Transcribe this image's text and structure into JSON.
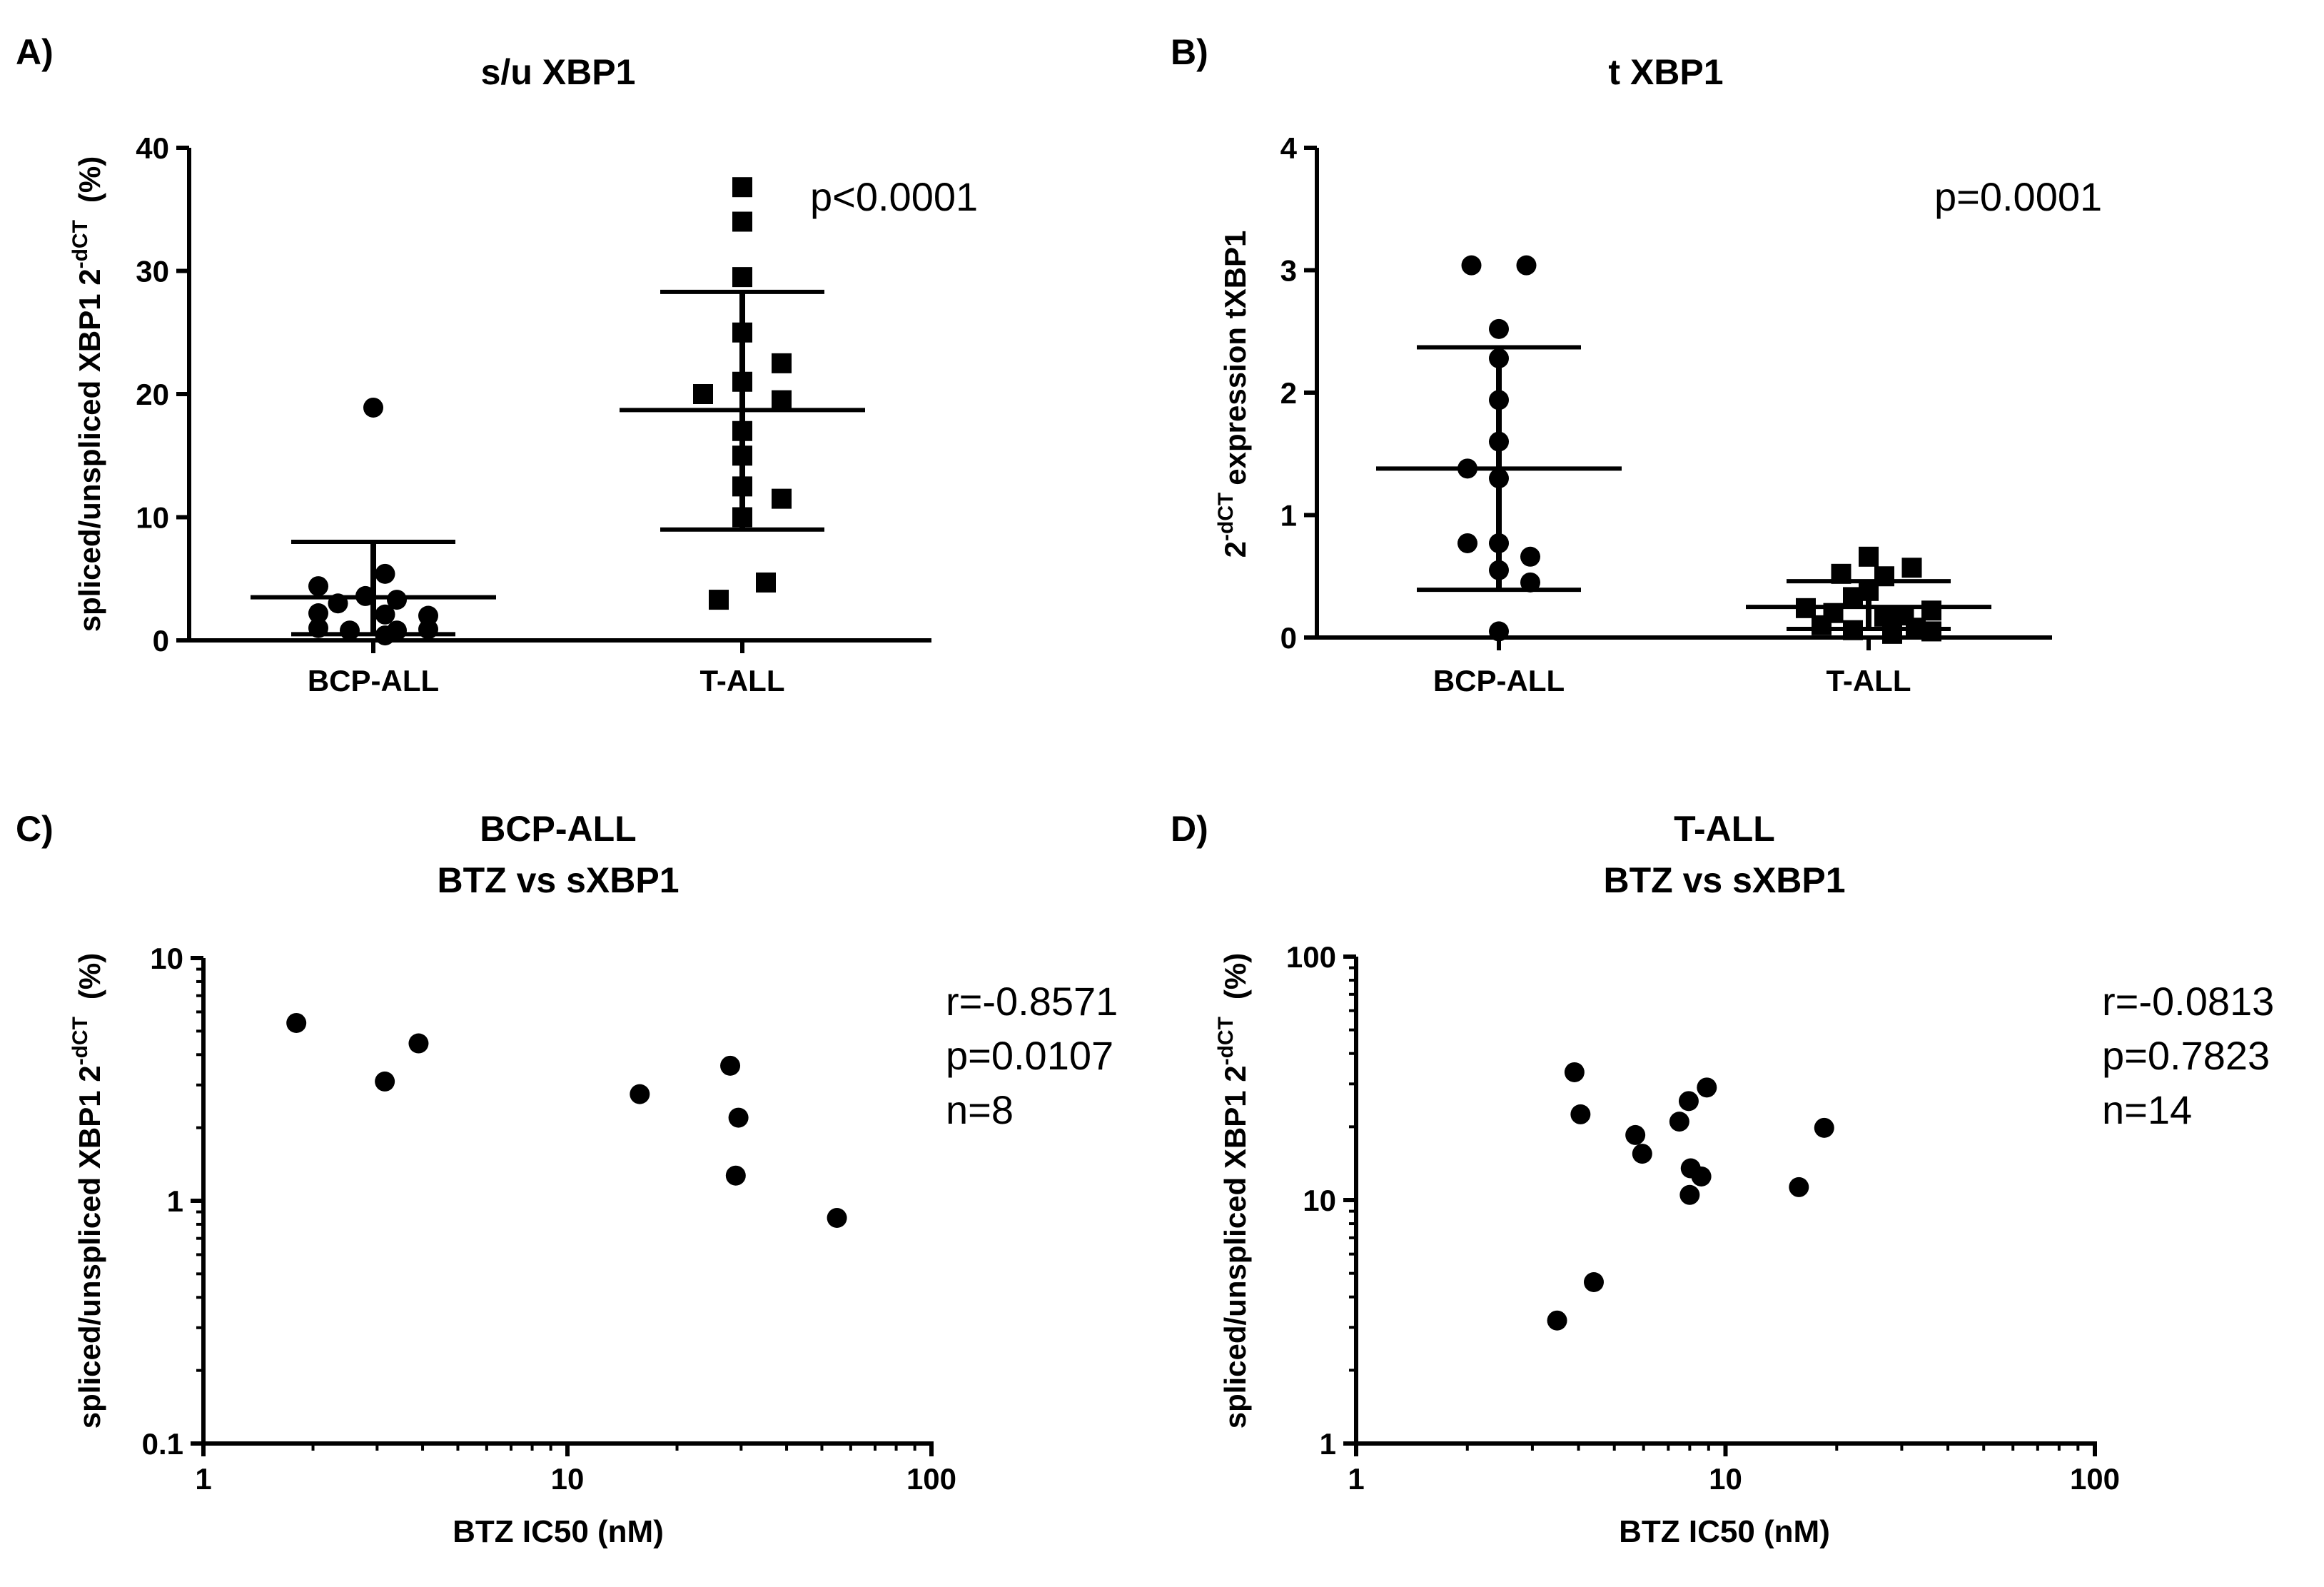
{
  "chart_data": [
    {
      "panel_label": "A)",
      "type": "scatter",
      "title": "s/u XBP1",
      "ylabel_main": "spliced/unspliced XBP1 2",
      "ylabel_sup": "-dCT",
      "ylabel_tail": "(%)",
      "ylim": [
        0,
        40
      ],
      "yticks": [
        "0",
        "10",
        "20",
        "30",
        "40"
      ],
      "categories": [
        "BCP-ALL",
        "T-ALL"
      ],
      "annotation": [
        "p<0.0001"
      ],
      "series": [
        {
          "name": "BCP-ALL",
          "marker": "circle",
          "mean": 3.5,
          "sd_low": 0.5,
          "sd_high": 8.0,
          "values": [
            18.9,
            5.4,
            4.4,
            3.6,
            3.3,
            3.0,
            2.2,
            2.1,
            2.0,
            1.0,
            0.9,
            0.8,
            0.8,
            0.4
          ],
          "offsets": [
            0,
            0.3,
            -1.4,
            -0.2,
            0.6,
            -0.9,
            -1.4,
            0.3,
            1.4,
            -1.4,
            1.4,
            -0.6,
            0.6,
            0.3
          ]
        },
        {
          "name": "T-ALL",
          "marker": "square",
          "mean": 18.7,
          "sd_low": 9.0,
          "sd_high": 28.3,
          "values": [
            36.8,
            34.0,
            29.5,
            25.0,
            22.5,
            21.0,
            20.0,
            19.5,
            17.0,
            15.0,
            12.5,
            11.5,
            10.0,
            4.7,
            3.3
          ],
          "offsets": [
            0,
            0,
            0,
            0,
            1.0,
            0,
            -1.0,
            1.0,
            0,
            0,
            0,
            1.0,
            0,
            0.6,
            -0.6
          ]
        }
      ]
    },
    {
      "panel_label": "B)",
      "type": "scatter",
      "title": "t XBP1",
      "ylabel_main": "expression tXBP1",
      "ylabel_base": "2",
      "ylabel_sup": "-dCT",
      "ylim": [
        0,
        4
      ],
      "yticks": [
        "0",
        "1",
        "2",
        "3",
        "4"
      ],
      "categories": [
        "BCP-ALL",
        "T-ALL"
      ],
      "annotation": [
        "p=0.0001"
      ],
      "series": [
        {
          "name": "BCP-ALL",
          "marker": "circle",
          "mean": 1.38,
          "sd_low": 0.39,
          "sd_high": 2.37,
          "values": [
            3.04,
            3.04,
            2.52,
            2.28,
            1.94,
            1.6,
            1.38,
            1.3,
            0.77,
            0.77,
            0.66,
            0.55,
            0.45,
            0.05
          ],
          "offsets": [
            -0.7,
            0.7,
            0,
            0,
            0,
            0,
            -0.8,
            0,
            -0.8,
            0,
            0.8,
            0,
            0.8,
            0
          ]
        },
        {
          "name": "T-ALL",
          "marker": "square",
          "mean": 0.25,
          "sd_low": 0.07,
          "sd_high": 0.46,
          "values": [
            0.66,
            0.57,
            0.52,
            0.5,
            0.38,
            0.33,
            0.24,
            0.22,
            0.2,
            0.18,
            0.17,
            0.1,
            0.08,
            0.06,
            0.05,
            0.03
          ],
          "offsets": [
            0,
            1.1,
            -0.7,
            0.4,
            0,
            -0.4,
            -1.6,
            1.6,
            -0.9,
            0.9,
            0.4,
            -1.2,
            1.2,
            -0.4,
            1.6,
            0.6
          ]
        }
      ]
    },
    {
      "panel_label": "C)",
      "type": "scatter",
      "title_lines": [
        "BCP-ALL",
        "BTZ vs sXBP1"
      ],
      "xlabel": "BTZ IC50 (nM)",
      "ylabel_main": "spliced/unspliced XBP1 2",
      "ylabel_sup": "-dCT",
      "ylabel_tail": "(%)",
      "xscale": "log",
      "yscale": "log",
      "xlim": [
        1,
        100
      ],
      "ylim": [
        0.1,
        10
      ],
      "xticks": [
        {
          "value": 1,
          "label": "1"
        },
        {
          "value": 10,
          "label": "10"
        },
        {
          "value": 100,
          "label": "100"
        }
      ],
      "yticks": [
        {
          "value": 0.1,
          "label": "0.1"
        },
        {
          "value": 1,
          "label": "1"
        },
        {
          "value": 10,
          "label": "10"
        }
      ],
      "annotation": [
        "r=-0.8571",
        "p=0.0107",
        "n=8"
      ],
      "points": [
        {
          "x": 1.8,
          "y": 5.4
        },
        {
          "x": 3.15,
          "y": 3.1
        },
        {
          "x": 3.9,
          "y": 4.45
        },
        {
          "x": 15.8,
          "y": 2.75
        },
        {
          "x": 28.0,
          "y": 3.6
        },
        {
          "x": 29.5,
          "y": 2.2
        },
        {
          "x": 29.0,
          "y": 1.27
        },
        {
          "x": 55.0,
          "y": 0.85
        }
      ]
    },
    {
      "panel_label": "D)",
      "type": "scatter",
      "title_lines": [
        "T-ALL",
        "BTZ vs sXBP1"
      ],
      "xlabel": "BTZ IC50 (nM)",
      "ylabel_main": "spliced/unspliced XBP1 2",
      "ylabel_sup": "-dCT",
      "ylabel_tail": "(%)",
      "xscale": "log",
      "yscale": "log",
      "xlim": [
        1,
        100
      ],
      "ylim": [
        1,
        100
      ],
      "xticks": [
        {
          "value": 1,
          "label": "1"
        },
        {
          "value": 10,
          "label": "10"
        },
        {
          "value": 100,
          "label": "100"
        }
      ],
      "yticks": [
        {
          "value": 1,
          "label": "1"
        },
        {
          "value": 10,
          "label": "10"
        },
        {
          "value": 100,
          "label": "100"
        }
      ],
      "annotation": [
        "r=-0.0813",
        "p=0.7823",
        "n=14"
      ],
      "points": [
        {
          "x": 3.5,
          "y": 3.2
        },
        {
          "x": 3.9,
          "y": 33.5
        },
        {
          "x": 4.05,
          "y": 22.5
        },
        {
          "x": 4.4,
          "y": 4.6
        },
        {
          "x": 5.7,
          "y": 18.5
        },
        {
          "x": 5.95,
          "y": 15.5
        },
        {
          "x": 7.5,
          "y": 21.0
        },
        {
          "x": 7.95,
          "y": 25.5
        },
        {
          "x": 8.0,
          "y": 10.5
        },
        {
          "x": 8.05,
          "y": 13.5
        },
        {
          "x": 8.6,
          "y": 12.5
        },
        {
          "x": 8.9,
          "y": 29.0
        },
        {
          "x": 15.8,
          "y": 11.3
        },
        {
          "x": 18.5,
          "y": 19.8
        }
      ]
    }
  ]
}
